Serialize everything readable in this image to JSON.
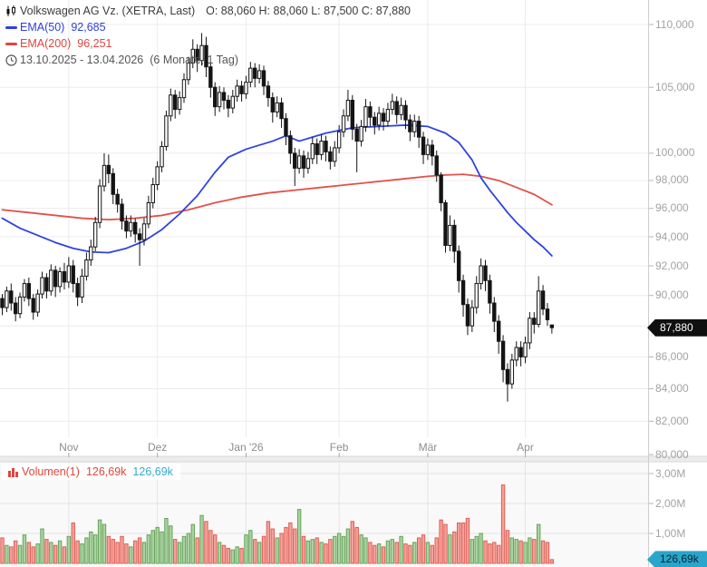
{
  "header": {
    "title": "Volkswagen AG Vz. (XETRA, Last)",
    "ohlc": "O: 88,060  H: 88,060  L: 87,500  C: 87,880",
    "ema50_label": "EMA(50)",
    "ema50_value": "92,685",
    "ema200_label": "EMA(200)",
    "ema200_value": "96,251",
    "date_range": "13.10.2025 - 13.04.2026",
    "period_info": "(6 Monate, 1 Tag)"
  },
  "volume_legend": {
    "label": "Volumen(1)",
    "value_red": "126,69k",
    "value_cyan": "126,69k"
  },
  "price_tag": "87,880",
  "volume_tag": "126,69k",
  "colors": {
    "candle_line": "#141414",
    "candle_up_fill": "#ffffff",
    "candle_down_fill": "#141414",
    "ema50": "#3142e0",
    "ema200": "#e2514a",
    "vol_up_fill": "#a9d4a0",
    "vol_up_stroke": "#68a35c",
    "vol_down_fill": "#f5a19a",
    "vol_down_stroke": "#de6056",
    "grid": "#ececec",
    "axis_line": "#cfcfcf",
    "tick": "#b5b5b5",
    "splitter": "#ececec",
    "splitter_edge": "#d8d8d8",
    "vol_pane_bg": "#f9f9f9",
    "price_tag_bg": "#101010",
    "vol_tag_bg": "#2aa5cc"
  },
  "chart_data": {
    "type": "candlestick+volume",
    "scale": "log",
    "title": "Volkswagen AG Vz. (XETRA, Last)",
    "legend_position": "top-left",
    "grid": true,
    "price_axis_ticks": [
      {
        "label": "110,000",
        "value": 110
      },
      {
        "label": "105,000",
        "value": 105
      },
      {
        "label": "100,000",
        "value": 100
      },
      {
        "label": "98,000",
        "value": 98
      },
      {
        "label": "96,000",
        "value": 96
      },
      {
        "label": "94,000",
        "value": 94
      },
      {
        "label": "92,000",
        "value": 92
      },
      {
        "label": "90,000",
        "value": 90
      },
      {
        "label": "",
        "value": 88
      },
      {
        "label": "86,000",
        "value": 86
      },
      {
        "label": "84,000",
        "value": 84
      },
      {
        "label": "82,000",
        "value": 82
      },
      {
        "label": "80,000",
        "value": 80,
        "line": false
      }
    ],
    "months": [
      {
        "label": "Nov",
        "day": 15
      },
      {
        "label": "Dez",
        "day": 35
      },
      {
        "label": "Jan '26",
        "day": 55
      },
      {
        "label": "Feb",
        "day": 76
      },
      {
        "label": "Mär",
        "day": 96
      },
      {
        "label": "Apr",
        "day": 118
      }
    ],
    "volume_axis_ticks": [
      {
        "label": "3,00M",
        "value": 3
      },
      {
        "label": "2,00M",
        "value": 2
      },
      {
        "label": "1,00M",
        "value": 1
      }
    ],
    "last_close": 87.88,
    "last_volume_m": 0.12669,
    "candles": [
      [
        89.8,
        90.1,
        88.7,
        89.2
      ],
      [
        89.2,
        90.6,
        88.9,
        90.3
      ],
      [
        90.3,
        90.8,
        89.0,
        89.5
      ],
      [
        89.5,
        89.9,
        88.3,
        88.8
      ],
      [
        88.8,
        90.2,
        88.5,
        89.9
      ],
      [
        89.9,
        91.1,
        89.6,
        90.8
      ],
      [
        90.8,
        91.2,
        89.3,
        89.8
      ],
      [
        89.8,
        90.1,
        88.4,
        88.9
      ],
      [
        88.9,
        90.4,
        88.6,
        90.1
      ],
      [
        90.1,
        91.6,
        89.8,
        91.2
      ],
      [
        91.2,
        91.5,
        89.8,
        90.3
      ],
      [
        90.3,
        92.1,
        90.0,
        91.7
      ],
      [
        91.7,
        92.0,
        89.9,
        90.6
      ],
      [
        90.6,
        91.9,
        90.2,
        91.6
      ],
      [
        91.6,
        92.2,
        90.4,
        90.9
      ],
      [
        90.9,
        92.6,
        90.5,
        92.0
      ],
      [
        92.0,
        92.4,
        90.2,
        90.8
      ],
      [
        90.8,
        91.2,
        89.3,
        89.9
      ],
      [
        89.9,
        91.8,
        89.5,
        91.3
      ],
      [
        91.3,
        92.9,
        91.0,
        92.4
      ],
      [
        92.4,
        93.8,
        92.0,
        93.3
      ],
      [
        93.3,
        95.4,
        93.0,
        95.0
      ],
      [
        95.0,
        98.1,
        94.6,
        97.6
      ],
      [
        97.6,
        100.0,
        97.2,
        99.1
      ],
      [
        99.1,
        99.9,
        97.8,
        98.5
      ],
      [
        98.5,
        98.9,
        96.3,
        97.0
      ],
      [
        97.0,
        97.4,
        95.7,
        96.3
      ],
      [
        96.3,
        96.7,
        94.5,
        95.1
      ],
      [
        95.1,
        95.5,
        93.9,
        94.4
      ],
      [
        94.4,
        95.5,
        94.0,
        95.0
      ],
      [
        95.0,
        95.3,
        93.6,
        94.2
      ],
      [
        94.2,
        94.6,
        92.0,
        93.8
      ],
      [
        93.8,
        95.3,
        93.4,
        94.9
      ],
      [
        94.9,
        96.9,
        94.6,
        96.4
      ],
      [
        96.4,
        98.2,
        96.0,
        97.7
      ],
      [
        97.7,
        99.4,
        97.3,
        99.0
      ],
      [
        99.0,
        100.9,
        98.6,
        100.5
      ],
      [
        100.5,
        103.2,
        100.2,
        102.8
      ],
      [
        102.8,
        104.9,
        102.4,
        104.4
      ],
      [
        104.4,
        104.8,
        102.6,
        103.3
      ],
      [
        103.3,
        104.7,
        102.9,
        104.2
      ],
      [
        104.2,
        106.1,
        103.8,
        105.6
      ],
      [
        105.6,
        107.4,
        105.2,
        106.9
      ],
      [
        106.9,
        108.8,
        106.5,
        108.0
      ],
      [
        108.0,
        108.4,
        106.2,
        107.1
      ],
      [
        107.1,
        109.3,
        106.7,
        108.3
      ],
      [
        108.3,
        109.0,
        105.8,
        106.6
      ],
      [
        106.6,
        107.0,
        104.2,
        105.0
      ],
      [
        105.0,
        105.4,
        102.8,
        103.5
      ],
      [
        103.5,
        105.1,
        103.1,
        104.6
      ],
      [
        104.6,
        105.0,
        103.3,
        104.0
      ],
      [
        104.0,
        104.4,
        102.7,
        103.4
      ],
      [
        103.4,
        104.8,
        103.0,
        104.3
      ],
      [
        104.3,
        105.6,
        103.9,
        105.1
      ],
      [
        105.1,
        105.5,
        103.9,
        104.5
      ],
      [
        104.5,
        105.9,
        104.1,
        105.4
      ],
      [
        105.4,
        107.0,
        105.0,
        106.5
      ],
      [
        106.5,
        106.9,
        105.0,
        105.7
      ],
      [
        105.7,
        106.8,
        105.3,
        106.3
      ],
      [
        106.3,
        106.7,
        104.4,
        105.1
      ],
      [
        105.1,
        105.5,
        103.5,
        104.2
      ],
      [
        104.2,
        104.6,
        102.3,
        103.1
      ],
      [
        103.1,
        104.3,
        102.7,
        103.8
      ],
      [
        103.8,
        104.2,
        101.9,
        102.6
      ],
      [
        102.6,
        103.0,
        100.6,
        101.3
      ],
      [
        101.3,
        101.7,
        99.2,
        100.0
      ],
      [
        100.0,
        100.4,
        97.6,
        98.9
      ],
      [
        98.9,
        100.3,
        98.5,
        99.8
      ],
      [
        99.8,
        100.2,
        98.2,
        98.9
      ],
      [
        98.9,
        100.1,
        98.5,
        99.6
      ],
      [
        99.6,
        101.2,
        99.2,
        100.7
      ],
      [
        100.7,
        101.1,
        99.2,
        99.9
      ],
      [
        99.9,
        101.4,
        99.5,
        100.9
      ],
      [
        100.9,
        101.3,
        99.4,
        100.1
      ],
      [
        100.1,
        100.5,
        98.8,
        99.4
      ],
      [
        99.4,
        100.9,
        99.0,
        100.4
      ],
      [
        100.4,
        102.1,
        100.0,
        101.6
      ],
      [
        101.6,
        103.3,
        101.2,
        102.8
      ],
      [
        102.8,
        104.8,
        102.4,
        104.0
      ],
      [
        104.0,
        104.4,
        101.0,
        101.8
      ],
      [
        101.8,
        102.2,
        98.6,
        100.9
      ],
      [
        100.9,
        102.5,
        100.5,
        102.0
      ],
      [
        102.0,
        104.1,
        101.6,
        103.5
      ],
      [
        103.5,
        103.9,
        102.0,
        102.7
      ],
      [
        102.7,
        103.1,
        101.4,
        102.1
      ],
      [
        102.1,
        103.5,
        101.7,
        103.0
      ],
      [
        103.0,
        103.4,
        101.7,
        102.4
      ],
      [
        102.4,
        103.8,
        102.0,
        103.3
      ],
      [
        103.3,
        104.5,
        102.9,
        103.9
      ],
      [
        103.9,
        104.3,
        102.2,
        102.9
      ],
      [
        102.9,
        104.2,
        102.5,
        103.6
      ],
      [
        103.6,
        104.0,
        101.8,
        102.5
      ],
      [
        102.5,
        102.9,
        100.9,
        101.6
      ],
      [
        101.6,
        102.9,
        101.2,
        102.4
      ],
      [
        102.4,
        102.8,
        100.4,
        101.2
      ],
      [
        101.2,
        101.6,
        99.2,
        99.9
      ],
      [
        99.9,
        101.1,
        99.5,
        100.6
      ],
      [
        100.6,
        101.0,
        99.1,
        99.8
      ],
      [
        99.8,
        100.2,
        97.9,
        98.4
      ],
      [
        98.4,
        98.6,
        95.8,
        96.4
      ],
      [
        96.4,
        96.6,
        92.9,
        93.4
      ],
      [
        93.4,
        95.5,
        93.0,
        94.8
      ],
      [
        94.8,
        95.2,
        92.2,
        93.0
      ],
      [
        93.0,
        93.4,
        90.2,
        91.0
      ],
      [
        91.0,
        91.4,
        88.6,
        89.4
      ],
      [
        89.4,
        89.8,
        87.4,
        88.0
      ],
      [
        88.0,
        89.7,
        87.6,
        89.2
      ],
      [
        89.2,
        91.3,
        88.8,
        90.8
      ],
      [
        90.8,
        92.5,
        90.4,
        92.0
      ],
      [
        92.0,
        92.4,
        90.3,
        91.0
      ],
      [
        91.0,
        91.4,
        88.8,
        89.5
      ],
      [
        89.5,
        89.9,
        87.6,
        88.3
      ],
      [
        88.3,
        88.7,
        86.2,
        87.0
      ],
      [
        87.0,
        87.4,
        84.4,
        85.2
      ],
      [
        85.2,
        85.6,
        83.2,
        84.3
      ],
      [
        84.3,
        86.2,
        84.0,
        85.8
      ],
      [
        85.8,
        87.0,
        85.4,
        86.6
      ],
      [
        86.6,
        87.0,
        85.4,
        86.0
      ],
      [
        86.0,
        87.3,
        85.6,
        86.9
      ],
      [
        86.9,
        88.9,
        86.5,
        88.5
      ],
      [
        88.5,
        88.9,
        87.5,
        88.1
      ],
      [
        88.1,
        91.3,
        87.9,
        90.3
      ],
      [
        90.3,
        90.7,
        88.7,
        89.1
      ],
      [
        89.1,
        89.5,
        88.0,
        88.4
      ],
      [
        88.06,
        88.06,
        87.5,
        87.88
      ]
    ],
    "volumes_m": [
      0.85,
      0.6,
      0.55,
      0.75,
      0.6,
      0.95,
      0.7,
      0.55,
      0.65,
      1.15,
      0.8,
      0.7,
      0.6,
      0.75,
      0.55,
      0.9,
      1.35,
      0.75,
      0.65,
      0.85,
      1.05,
      0.95,
      1.45,
      1.3,
      0.9,
      0.8,
      0.7,
      0.9,
      0.65,
      0.55,
      0.75,
      0.85,
      0.7,
      0.95,
      1.1,
      1.2,
      1.05,
      1.5,
      1.25,
      0.8,
      0.7,
      0.9,
      1.0,
      1.3,
      0.85,
      1.6,
      1.4,
      1.1,
      0.95,
      0.7,
      0.6,
      0.5,
      0.45,
      0.55,
      0.5,
      0.95,
      1.1,
      0.8,
      0.7,
      0.9,
      1.4,
      1.15,
      0.85,
      1.0,
      1.2,
      1.35,
      1.15,
      1.8,
      0.9,
      0.75,
      0.8,
      0.85,
      0.7,
      0.65,
      0.8,
      0.9,
      1.0,
      0.9,
      1.15,
      1.4,
      1.2,
      0.95,
      0.85,
      0.7,
      0.6,
      0.65,
      0.55,
      0.75,
      0.8,
      0.7,
      0.9,
      0.65,
      0.6,
      0.7,
      0.85,
      0.95,
      0.7,
      0.6,
      0.85,
      1.45,
      1.3,
      0.95,
      1.05,
      1.35,
      1.35,
      1.5,
      0.8,
      0.9,
      1.0,
      0.75,
      0.65,
      0.7,
      0.6,
      2.62,
      1.1,
      0.85,
      0.8,
      0.75,
      0.7,
      0.85,
      0.8,
      1.3,
      0.75,
      0.7,
      0.12669
    ],
    "ema50": [
      [
        0,
        95.3
      ],
      [
        4,
        94.6
      ],
      [
        8,
        94.1
      ],
      [
        12,
        93.6
      ],
      [
        16,
        93.2
      ],
      [
        20,
        92.95
      ],
      [
        24,
        92.9
      ],
      [
        28,
        93.2
      ],
      [
        32,
        93.7
      ],
      [
        36,
        94.5
      ],
      [
        40,
        95.6
      ],
      [
        44,
        96.9
      ],
      [
        48,
        98.6
      ],
      [
        51,
        99.7
      ],
      [
        55,
        100.3
      ],
      [
        61,
        100.9
      ],
      [
        64,
        101.3
      ],
      [
        67,
        100.9
      ],
      [
        70,
        101.2
      ],
      [
        73,
        101.5
      ],
      [
        79,
        101.9
      ],
      [
        85,
        102.0
      ],
      [
        91,
        102.1
      ],
      [
        96,
        102.0
      ],
      [
        100,
        101.5
      ],
      [
        103,
        100.8
      ],
      [
        106,
        99.5
      ],
      [
        108,
        98.2
      ],
      [
        110,
        97.3
      ],
      [
        112,
        96.5
      ],
      [
        114,
        95.7
      ],
      [
        116,
        95.0
      ],
      [
        118,
        94.4
      ],
      [
        120,
        93.8
      ],
      [
        122,
        93.3
      ],
      [
        124,
        92.685
      ]
    ],
    "ema200": [
      [
        0,
        95.9
      ],
      [
        6,
        95.7
      ],
      [
        12,
        95.5
      ],
      [
        18,
        95.3
      ],
      [
        24,
        95.2
      ],
      [
        30,
        95.3
      ],
      [
        36,
        95.5
      ],
      [
        42,
        95.9
      ],
      [
        48,
        96.4
      ],
      [
        54,
        96.8
      ],
      [
        60,
        97.1
      ],
      [
        66,
        97.3
      ],
      [
        72,
        97.5
      ],
      [
        78,
        97.7
      ],
      [
        84,
        97.9
      ],
      [
        90,
        98.1
      ],
      [
        96,
        98.3
      ],
      [
        100,
        98.4
      ],
      [
        104,
        98.45
      ],
      [
        108,
        98.3
      ],
      [
        112,
        98.0
      ],
      [
        116,
        97.5
      ],
      [
        120,
        97.0
      ],
      [
        124,
        96.251
      ]
    ]
  }
}
